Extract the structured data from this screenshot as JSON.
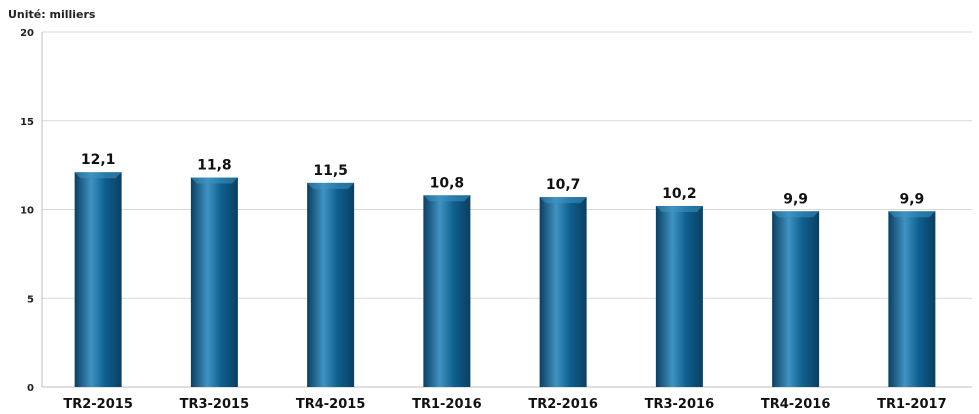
{
  "chart_data": {
    "type": "bar",
    "unit_label": "Unité: milliers",
    "categories": [
      "TR2-2015",
      "TR3-2015",
      "TR4-2015",
      "TR1-2016",
      "TR2-2016",
      "TR3-2016",
      "TR4-2016",
      "TR1-2017"
    ],
    "values": [
      12.1,
      11.8,
      11.5,
      10.8,
      10.7,
      10.2,
      9.9,
      9.9
    ],
    "data_labels": [
      "12,1",
      "11,8",
      "11,5",
      "10,8",
      "10,7",
      "10,2",
      "9,9",
      "9,9"
    ],
    "y_ticks": [
      0,
      5,
      10,
      15,
      20
    ],
    "ylim": [
      0,
      20
    ],
    "grid": true,
    "legend": "none",
    "bar_color": "#0e5f8e",
    "bar_highlight": "#3f93c2",
    "bar_shadow": "#0a3f61",
    "grid_color": "#d9d9d9",
    "title": "",
    "xlabel": "",
    "ylabel": ""
  }
}
